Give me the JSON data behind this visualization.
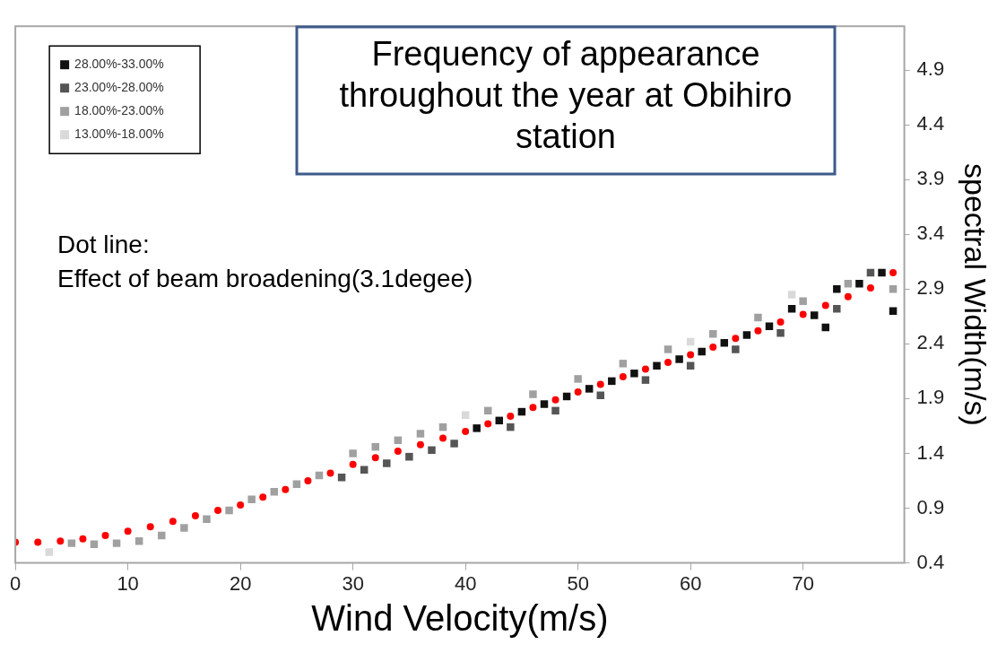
{
  "chart_data": {
    "type": "scatter",
    "title": "Frequency of appearance throughout the year at Obihiro station",
    "xlabel": "Wind Velocity(m/s)",
    "ylabel": "spectral Width(m/s)",
    "annotations": [
      "Dot line:",
      "Effect of beam broadening(3.1degee)"
    ],
    "xlim": [
      0,
      79
    ],
    "xticks": [
      0,
      10,
      20,
      30,
      40,
      50,
      60,
      70
    ],
    "ylim": [
      0.4,
      5.3
    ],
    "yticks": [
      0.4,
      0.9,
      1.4,
      1.9,
      2.4,
      2.9,
      3.4,
      3.9,
      4.4,
      4.9
    ],
    "grid": false,
    "legend": "top left",
    "series": [
      {
        "name": "28.00%-33.00%",
        "color": "#111111",
        "marker": "square",
        "x": [
          41,
          43,
          45,
          47,
          49,
          51,
          53,
          55,
          57,
          59,
          61,
          63,
          65,
          67,
          69,
          71,
          72,
          73,
          75,
          77,
          78
        ],
        "values": [
          1.63,
          1.7,
          1.78,
          1.85,
          1.92,
          1.99,
          2.06,
          2.13,
          2.2,
          2.26,
          2.33,
          2.41,
          2.48,
          2.56,
          2.72,
          2.66,
          2.55,
          2.9,
          2.95,
          3.05,
          2.7
        ]
      },
      {
        "name": "23.00%-28.00%",
        "color": "#555555",
        "marker": "square",
        "x": [
          29,
          31,
          33,
          35,
          37,
          39,
          44,
          48,
          52,
          56,
          60,
          64,
          68,
          73,
          76
        ],
        "values": [
          1.18,
          1.25,
          1.31,
          1.37,
          1.43,
          1.49,
          1.64,
          1.79,
          1.93,
          2.07,
          2.2,
          2.35,
          2.5,
          2.72,
          3.05
        ]
      },
      {
        "name": "18.00%-23.00%",
        "color": "#a0a0a0",
        "marker": "square",
        "x": [
          5,
          7,
          9,
          11,
          13,
          15,
          17,
          19,
          21,
          23,
          25,
          27,
          30,
          32,
          34,
          36,
          38,
          42,
          46,
          50,
          54,
          58,
          62,
          66,
          70,
          74,
          78
        ],
        "values": [
          0.58,
          0.57,
          0.58,
          0.6,
          0.65,
          0.72,
          0.8,
          0.88,
          0.98,
          1.05,
          1.12,
          1.2,
          1.4,
          1.46,
          1.52,
          1.58,
          1.64,
          1.79,
          1.94,
          2.08,
          2.22,
          2.35,
          2.49,
          2.64,
          2.79,
          2.95,
          2.9
        ]
      },
      {
        "name": "13.00%-18.00%",
        "color": "#d9d9d9",
        "marker": "square",
        "x": [
          3,
          40,
          60,
          69
        ],
        "values": [
          0.5,
          1.75,
          2.42,
          2.85
        ]
      },
      {
        "color": "#ff0000",
        "marker": "circle",
        "x": [
          0,
          2,
          4,
          6,
          8,
          10,
          12,
          14,
          16,
          18,
          20,
          22,
          24,
          26,
          28,
          30,
          32,
          34,
          36,
          38,
          40,
          42,
          44,
          46,
          48,
          50,
          52,
          54,
          56,
          58,
          60,
          62,
          64,
          66,
          68,
          70,
          72,
          74,
          76,
          78
        ],
        "values": [
          0.59,
          0.59,
          0.6,
          0.62,
          0.65,
          0.69,
          0.73,
          0.78,
          0.83,
          0.88,
          0.93,
          1.0,
          1.07,
          1.15,
          1.22,
          1.3,
          1.36,
          1.42,
          1.48,
          1.54,
          1.6,
          1.67,
          1.74,
          1.82,
          1.89,
          1.96,
          2.03,
          2.1,
          2.17,
          2.23,
          2.3,
          2.37,
          2.45,
          2.52,
          2.6,
          2.67,
          2.75,
          2.83,
          2.91,
          3.05
        ]
      }
    ]
  }
}
